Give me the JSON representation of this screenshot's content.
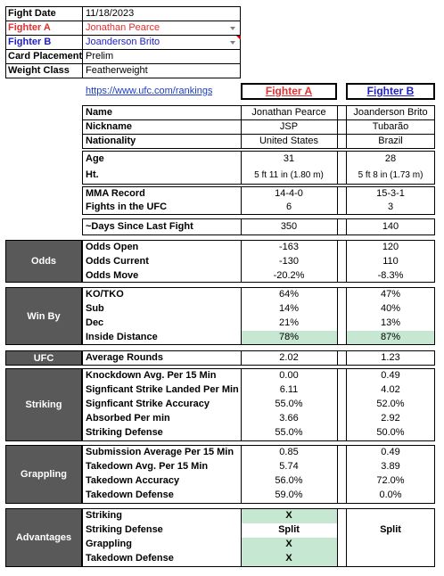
{
  "header": {
    "fight_date_label": "Fight Date",
    "fight_date": "11/18/2023",
    "fighter_a_label": "Fighter A",
    "fighter_a": "Jonathan Pearce",
    "fighter_b_label": "Fighter B",
    "fighter_b": "Joanderson Brito",
    "card_label": "Card Placement",
    "card": "Prelim",
    "weight_label": "Weight Class",
    "weight": "Featherweight"
  },
  "link": "https://www.ufc.com/rankings",
  "col_a_title": "Fighter A",
  "col_b_title": "Fighter B",
  "profile": {
    "name_label": "Name",
    "name_a": "Jonathan Pearce",
    "name_b": "Joanderson Brito",
    "nick_label": "Nickname",
    "nick_a": "JSP",
    "nick_b": "Tubarão",
    "nat_label": "Nationality",
    "nat_a": "United States",
    "nat_b": "Brazil"
  },
  "physical": {
    "age_label": "Age",
    "age_a": "31",
    "age_b": "28",
    "ht_label": "Ht.",
    "ht_a": "5 ft 11 in (1.80 m)",
    "ht_b": "5 ft 8 in (1.73 m)"
  },
  "record": {
    "mma_label": "MMA Record",
    "mma_a": "14-4-0",
    "mma_b": "15-3-1",
    "ufc_label": "Fights in the UFC",
    "ufc_a": "6",
    "ufc_b": "3"
  },
  "days": {
    "label": "~Days Since Last Fight",
    "a": "350",
    "b": "140"
  },
  "odds": {
    "section": "Odds",
    "open_label": "Odds Open",
    "open_a": "-163",
    "open_b": "120",
    "current_label": "Odds Current",
    "current_a": "-130",
    "current_b": "110",
    "move_label": "Odds Move",
    "move_a": "-20.2%",
    "move_b": "-8.3%"
  },
  "winby": {
    "section": "Win By",
    "ko_label": "KO/TKO",
    "ko_a": "64%",
    "ko_b": "47%",
    "sub_label": "Sub",
    "sub_a": "14%",
    "sub_b": "40%",
    "dec_label": "Dec",
    "dec_a": "21%",
    "dec_b": "13%",
    "id_label": "Inside Distance",
    "id_a": "78%",
    "id_b": "87%"
  },
  "ufc": {
    "section": "UFC",
    "label": "Average Rounds",
    "a": "2.02",
    "b": "1.23"
  },
  "striking": {
    "section": "Striking",
    "kd_label": "Knockdown Avg. Per 15 Min",
    "kd_a": "0.00",
    "kd_b": "0.49",
    "sl_label": "Signficant Strike Landed Per Min",
    "sl_a": "6.11",
    "sl_b": "4.02",
    "sa_label": "Signficant Strike Accuracy",
    "sa_a": "55.0%",
    "sa_b": "52.0%",
    "ab_label": "Absorbed Per min",
    "ab_a": "3.66",
    "ab_b": "2.92",
    "sd_label": "Striking Defense",
    "sd_a": "55.0%",
    "sd_b": "50.0%"
  },
  "grappling": {
    "section": "Grappling",
    "sub_label": "Submission Average  Per 15 Min",
    "sub_a": "0.85",
    "sub_b": "0.49",
    "td_label": "Takedown Avg. Per 15 Min",
    "td_a": "5.74",
    "td_b": "3.89",
    "ta_label": "Takedown Accuracy",
    "ta_a": "56.0%",
    "ta_b": "72.0%",
    "tdd_label": "Takedown Defense",
    "tdd_a": "59.0%",
    "tdd_b": "0.0%"
  },
  "advantages": {
    "section": "Advantages",
    "striking_label": "Striking",
    "striking_a": "X",
    "sdef_label": "Striking Defense",
    "sdef_a": "Split",
    "sdef_b": "Split",
    "grap_label": "Grappling",
    "grap_a": "X",
    "tdd_label": "Takedown Defense",
    "tdd_a": "X"
  },
  "colors": {
    "section_bg": "#595959",
    "highlight": "#c6e7d2",
    "fighter_a": "#e03030",
    "fighter_b": "#2020c0"
  }
}
